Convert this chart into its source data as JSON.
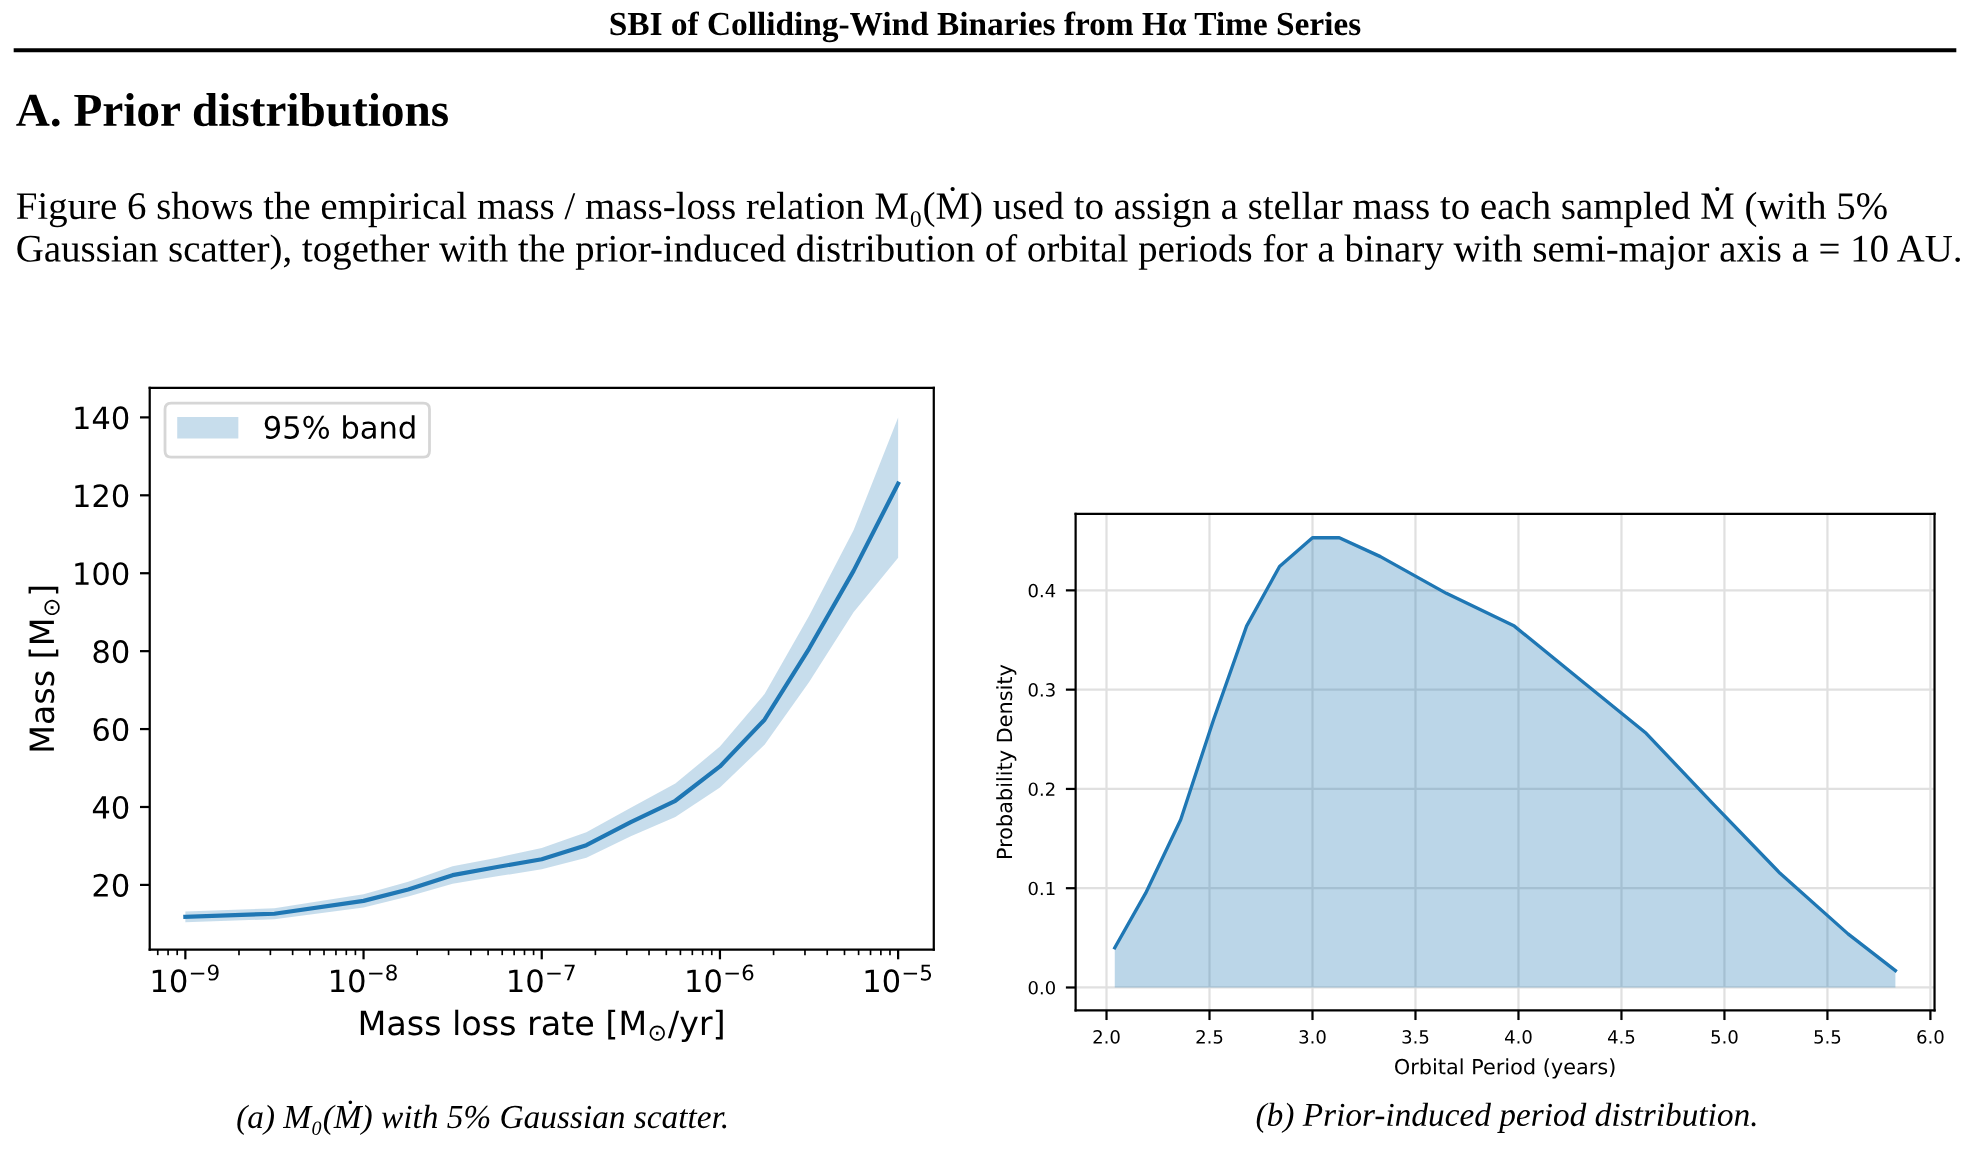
{
  "chart_data": [
    {
      "type": "line",
      "xlabel": "Mass loss rate [M$_{⊙}$/yr]",
      "ylabel": "Mass [M$_{⊙}$]",
      "log": "x",
      "annotations": [
        "SBI of Colliding-Wind Binaries from Hα Time Series",
        "A. Prior distributions",
        "Figure 6 shows the empirical mass / mass-loss relation M₀(Ṁ) used to assign a stellar mass to each sampled Ṁ (with 5% Gaussian scatter), together with the prior-induced distribution of orbital periods for a binary with semi-major axis a = 10 AU.",
        "(a) M₀(Ṁ) with 5% Gaussian scatter."
      ],
      "x": [
        1e-09,
        3.16e-09,
        1e-08,
        1.78e-08,
        3.16e-08,
        5.62e-08,
        1e-07,
        1.78e-07,
        3.16e-07,
        5.62e-07,
        1e-06,
        1.78e-06,
        3.16e-06,
        5.62e-06,
        1e-05
      ],
      "series": [
        {
          "name": "95% band",
          "color": "#1f77b4",
          "values": [
            11.8,
            12.6,
            15.9,
            18.8,
            22.5,
            24.6,
            26.6,
            30.2,
            36.1,
            41.6,
            50.4,
            62.4,
            80.6,
            100.6,
            123
          ],
          "lower": [
            10.4,
            11.2,
            14.2,
            17,
            20.3,
            22.2,
            24,
            27,
            32.5,
            37.4,
            45,
            56,
            72,
            90,
            104
          ],
          "upper": [
            13.2,
            14,
            17.6,
            20.8,
            24.8,
            27,
            29.5,
            33.5,
            39.8,
            46,
            55.5,
            69,
            89,
            111,
            140
          ]
        }
      ],
      "xlim": [
        6.31e-10,
        1.585e-05
      ],
      "ylim": [
        3.4,
        147.6
      ],
      "xticks": [
        {
          "value": 1e-09,
          "label": "10$^{−9}$"
        },
        {
          "value": 1e-08,
          "label": "10$^{−8}$"
        },
        {
          "value": 1e-07,
          "label": "10$^{−7}$"
        },
        {
          "value": 1e-06,
          "label": "10$^{−6}$"
        },
        {
          "value": 1e-05,
          "label": "10$^{−5}$"
        }
      ],
      "yticks": [
        20,
        40,
        60,
        80,
        100,
        120,
        140
      ],
      "legend": "top left",
      "grid": false
    },
    {
      "type": "area",
      "xlabel": "Orbital Period (years)",
      "ylabel": "Probability Density",
      "annotations": [
        "(b) Prior-induced period distribution."
      ],
      "x": [
        2.04,
        2.19,
        2.36,
        2.52,
        2.68,
        2.84,
        3.0,
        3.13,
        3.33,
        3.65,
        3.98,
        4.3,
        4.62,
        4.94,
        5.27,
        5.6,
        5.83
      ],
      "series": [
        {
          "color": "#1f77b4",
          "values": [
            0.04,
            0.095,
            0.169,
            0.27,
            0.364,
            0.424,
            0.453,
            0.453,
            0.434,
            0.397,
            0.364,
            0.31,
            0.256,
            0.186,
            0.115,
            0.054,
            0.017
          ]
        }
      ],
      "xlim": [
        1.85,
        6.02
      ],
      "ylim": [
        -0.023,
        0.477
      ],
      "xticks": [
        {
          "value": 2.0,
          "label": "2.0"
        },
        {
          "value": 2.5,
          "label": "2.5"
        },
        {
          "value": 3.0,
          "label": "3.0"
        },
        {
          "value": 3.5,
          "label": "3.5"
        },
        {
          "value": 4.0,
          "label": "4.0"
        },
        {
          "value": 4.5,
          "label": "4.5"
        },
        {
          "value": 5.0,
          "label": "5.0"
        },
        {
          "value": 5.5,
          "label": "5.5"
        },
        {
          "value": 6.0,
          "label": "6.0"
        }
      ],
      "yticks": [
        {
          "value": 0.0,
          "label": "0.0"
        },
        0.1,
        0.2,
        0.3,
        0.4
      ],
      "grid": true
    }
  ]
}
